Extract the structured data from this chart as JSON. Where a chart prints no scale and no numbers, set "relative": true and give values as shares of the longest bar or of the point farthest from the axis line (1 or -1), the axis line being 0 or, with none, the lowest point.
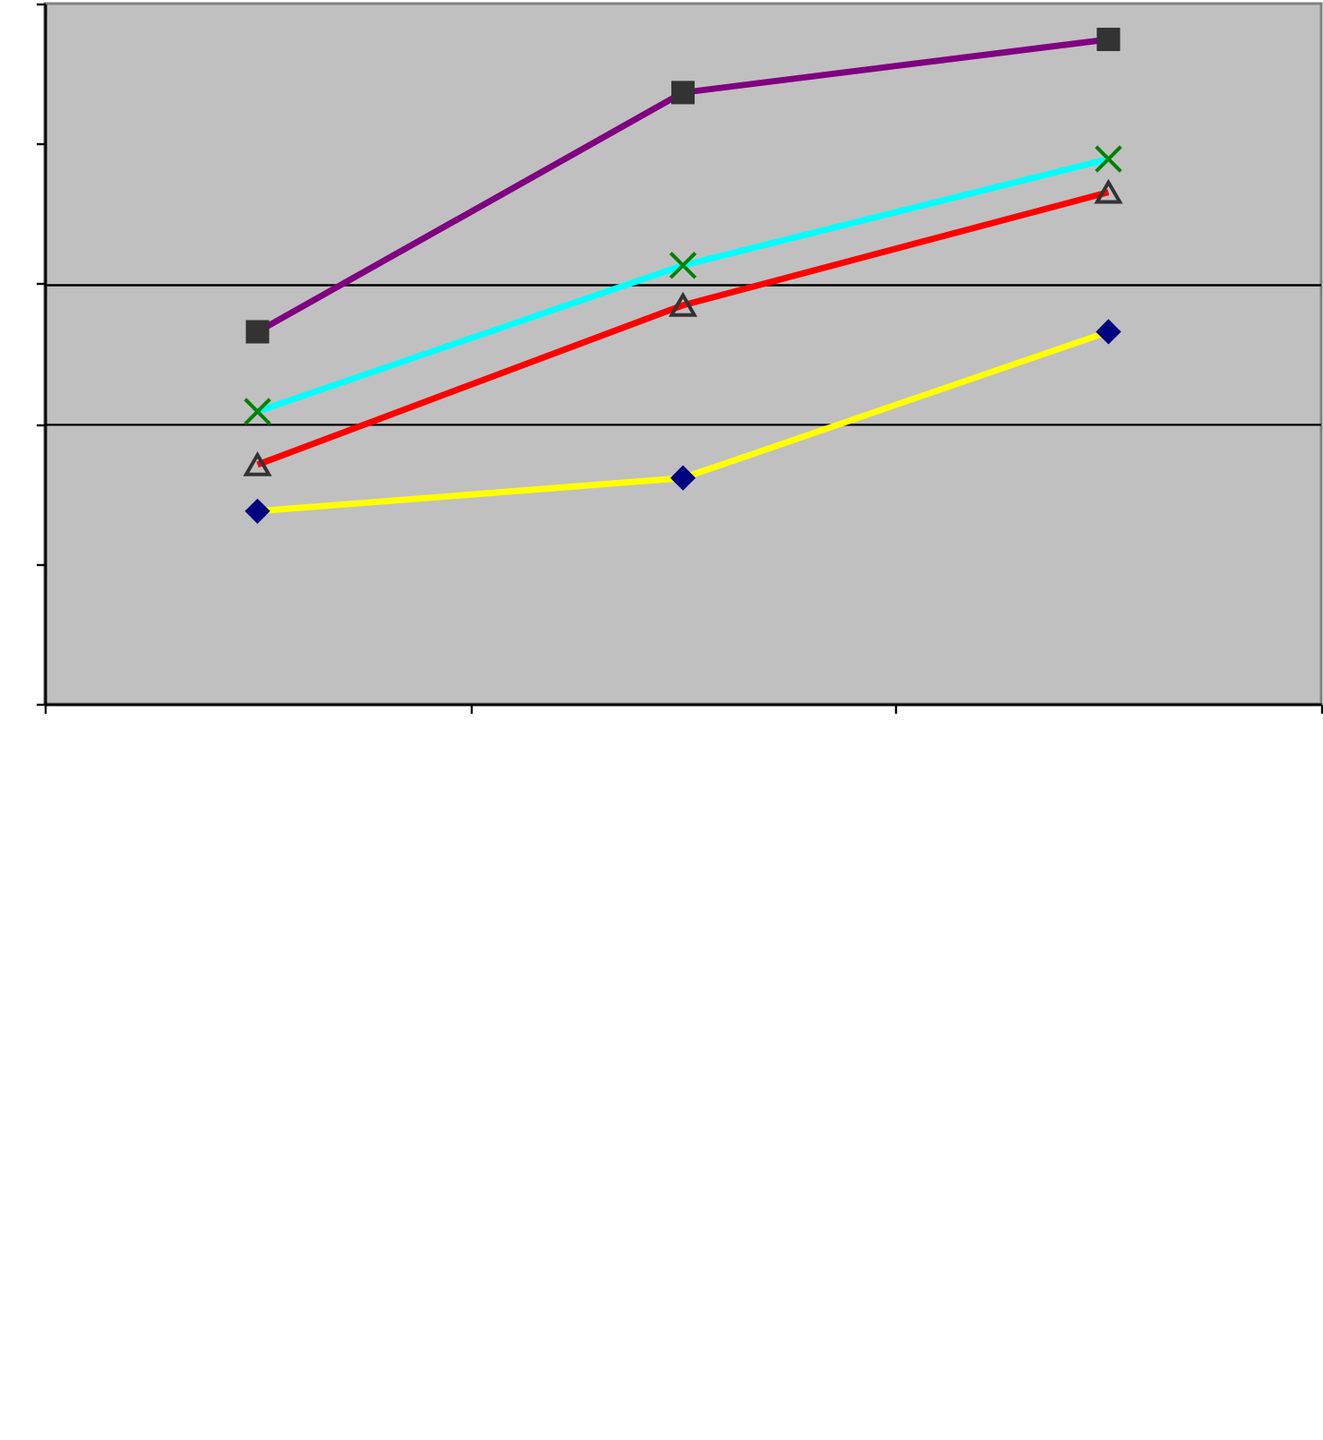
{
  "chart_data": {
    "type": "line",
    "relative": true,
    "categories": [
      null,
      null,
      null
    ],
    "ref_lines": [
      {
        "axis": "y",
        "value": 0.42,
        "color": "#000000"
      },
      {
        "axis": "y",
        "value": 0.63,
        "color": "#000000"
      }
    ],
    "series": [
      {
        "color": "#800080",
        "marker": "square",
        "colors": [
          "#333333",
          "#333333",
          "#333333"
        ],
        "values": [
          0.56,
          0.92,
          1
        ]
      },
      {
        "color": "#00ffff",
        "marker": "cross",
        "colors": [
          "#008000",
          "#008000",
          "#008000"
        ],
        "values": [
          0.44,
          0.66,
          0.82
        ]
      },
      {
        "color": "#ff0000",
        "marker": "triangle",
        "colors": [
          "#333333",
          "#333333",
          "#333333"
        ],
        "values": [
          0.36,
          0.6,
          0.77
        ]
      },
      {
        "color": "#ffff00",
        "marker": "diamond",
        "colors": [
          "#000080",
          "#000080",
          "#000080"
        ],
        "values": [
          0.29,
          0.34,
          0.56
        ]
      }
    ]
  }
}
